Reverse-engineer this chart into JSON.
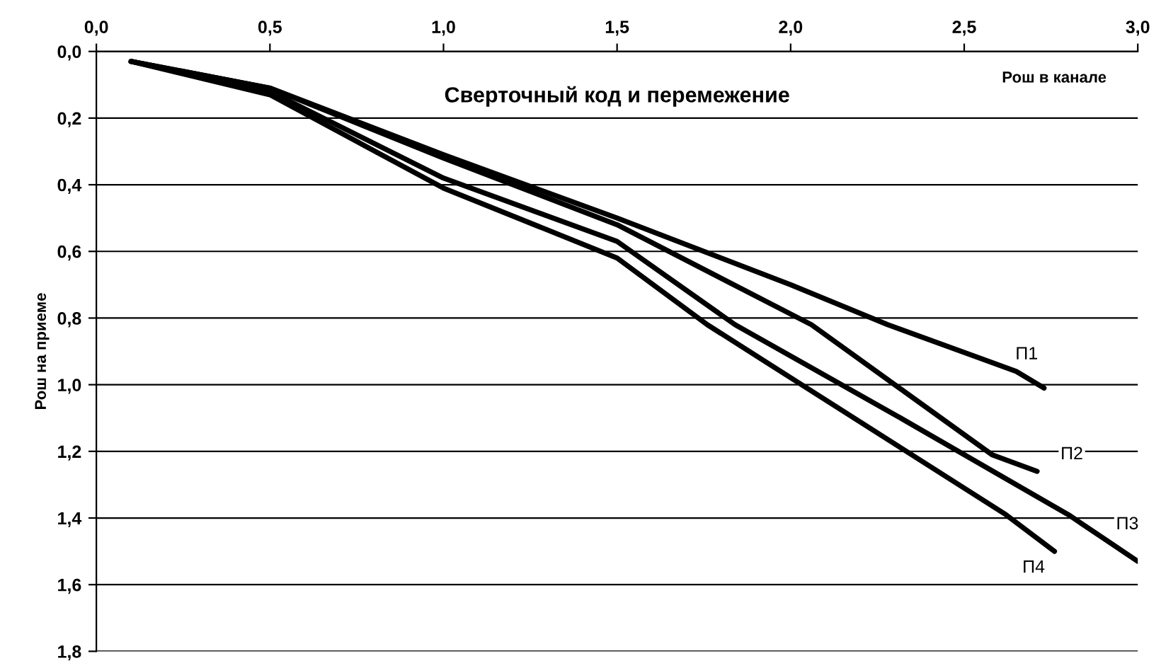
{
  "chart_data": {
    "type": "line",
    "title": "Сверточный код и перемежение",
    "xlabel": "Рош в канале",
    "ylabel": "Рош на приеме",
    "xlim": [
      0.0,
      3.0
    ],
    "xticks": [
      {
        "value": 0.0,
        "label": "0,0"
      },
      {
        "value": 0.5,
        "label": "0,5"
      },
      {
        "value": 1.0,
        "label": "1,0"
      },
      {
        "value": 1.5,
        "label": "1,5"
      },
      {
        "value": 2.0,
        "label": "2,0"
      },
      {
        "value": 2.5,
        "label": "2,5"
      },
      {
        "value": 3.0,
        "label": "3,0"
      }
    ],
    "ylim": [
      1.8,
      0.0
    ],
    "yticks": [
      {
        "value": 0.0,
        "label": "0,0"
      },
      {
        "value": 0.2,
        "label": "0,2"
      },
      {
        "value": 0.4,
        "label": "0,4"
      },
      {
        "value": 0.6,
        "label": "0,6"
      },
      {
        "value": 0.8,
        "label": "0,8"
      },
      {
        "value": 1.0,
        "label": "1,0"
      },
      {
        "value": 1.2,
        "label": "1,2"
      },
      {
        "value": 1.4,
        "label": "1,4"
      },
      {
        "value": 1.6,
        "label": "1,6"
      },
      {
        "value": 1.8,
        "label": "1,8"
      }
    ],
    "grid": "y",
    "marker": "none",
    "line_style": "solid",
    "legend": false,
    "series": [
      {
        "color": "#000000",
        "x": [
          0.1,
          0.5,
          1.0,
          1.5,
          2.0,
          2.28,
          2.65,
          2.73
        ],
        "values": [
          0.03,
          0.11,
          0.31,
          0.5,
          0.7,
          0.82,
          0.96,
          1.01
        ]
      },
      {
        "color": "#000000",
        "x": [
          0.1,
          0.5,
          1.0,
          1.5,
          2.06,
          2.58,
          2.71
        ],
        "values": [
          0.03,
          0.11,
          0.32,
          0.52,
          0.82,
          1.21,
          1.26
        ]
      },
      {
        "color": "#000000",
        "x": [
          0.1,
          0.5,
          1.0,
          1.5,
          1.84,
          2.3,
          2.8,
          3.0
        ],
        "values": [
          0.03,
          0.12,
          0.38,
          0.57,
          0.82,
          1.09,
          1.39,
          1.53
        ]
      },
      {
        "color": "#000000",
        "x": [
          0.1,
          0.5,
          1.0,
          1.5,
          1.76,
          2.62,
          2.76
        ],
        "values": [
          0.03,
          0.13,
          0.41,
          0.62,
          0.82,
          1.39,
          1.5
        ]
      }
    ],
    "annotations": [
      {
        "text": "П1",
        "x": 2.68,
        "y": 0.91
      },
      {
        "text": "П2",
        "x": 2.81,
        "y": 1.21
      },
      {
        "text": "П3",
        "x": 2.97,
        "y": 1.42
      },
      {
        "text": "П4",
        "x": 2.7,
        "y": 1.55
      }
    ]
  }
}
